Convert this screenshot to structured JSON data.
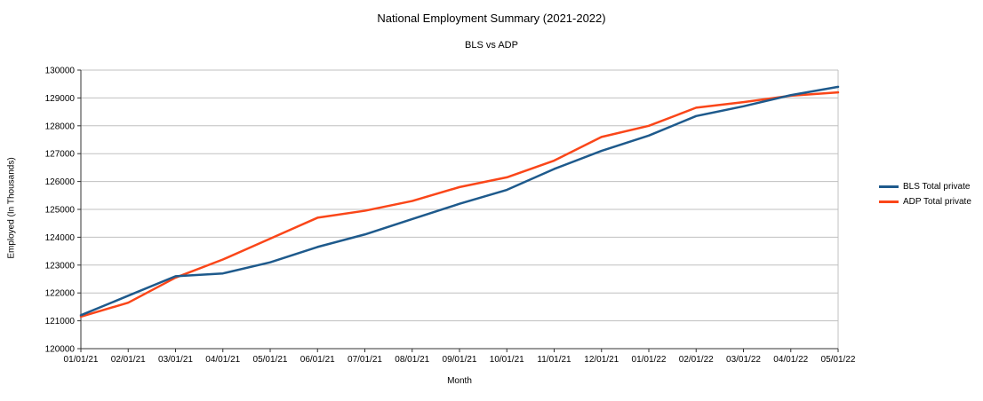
{
  "title": "National Employment Summary (2021-2022)",
  "subtitle": "BLS vs ADP",
  "chart_data": {
    "type": "line",
    "title": "National Employment Summary (2021-2022)",
    "subtitle": "BLS vs ADP",
    "xlabel": "Month",
    "ylabel": "Employed (In Thousands)",
    "ylim": [
      120000,
      130000
    ],
    "yticks": [
      120000,
      121000,
      122000,
      123000,
      124000,
      125000,
      126000,
      127000,
      128000,
      129000,
      130000
    ],
    "grid": true,
    "legend_position": "right",
    "grid_color": "#c0c0c0",
    "axis_color": "#333333",
    "categories": [
      "01/01/21",
      "02/01/21",
      "03/01/21",
      "04/01/21",
      "05/01/21",
      "06/01/21",
      "07/01/21",
      "08/01/21",
      "09/01/21",
      "10/01/21",
      "11/01/21",
      "12/01/21",
      "01/01/22",
      "02/01/22",
      "03/01/22",
      "04/01/22",
      "05/01/22"
    ],
    "series": [
      {
        "name": "BLS Total private",
        "color": "#1e5a8c",
        "values": [
          121200,
          121900,
          122600,
          122700,
          123100,
          123650,
          124100,
          124650,
          125200,
          125700,
          126450,
          127100,
          127650,
          128350,
          128700,
          129100,
          129400
        ]
      },
      {
        "name": "ADP Total private",
        "color": "#fa4619",
        "values": [
          121150,
          121650,
          122550,
          123200,
          123950,
          124700,
          124950,
          125300,
          125800,
          126150,
          126750,
          127600,
          128000,
          128650,
          128850,
          129080,
          129200
        ]
      }
    ]
  }
}
